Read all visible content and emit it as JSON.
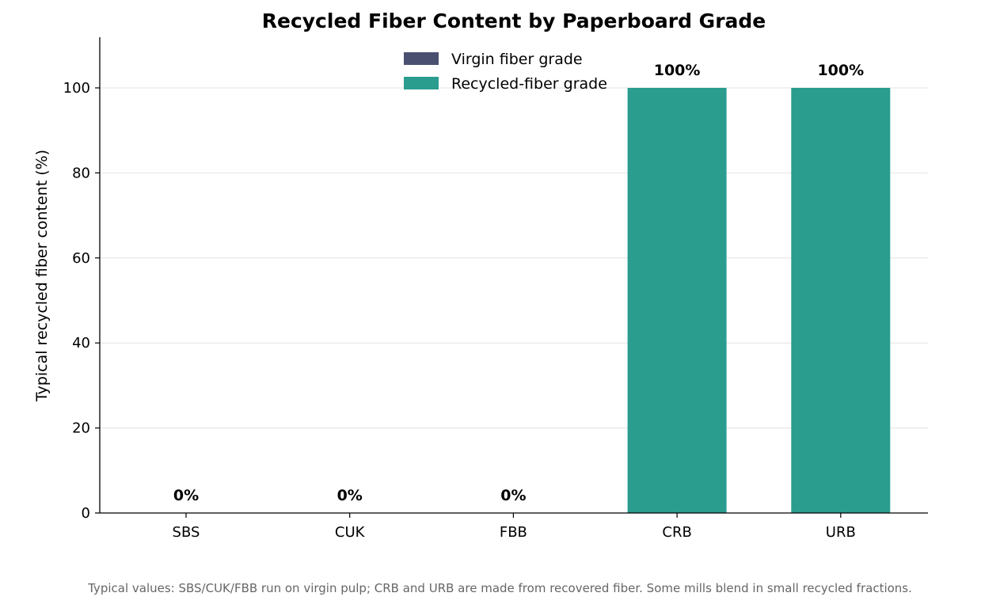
{
  "chart_data": {
    "type": "bar",
    "title": "Recycled Fiber Content by Paperboard Grade",
    "xlabel": "",
    "ylabel": "Typical recycled fiber content (%)",
    "categories": [
      "SBS",
      "CUK",
      "FBB",
      "CRB",
      "URB"
    ],
    "values": [
      0,
      0,
      0,
      100,
      100
    ],
    "data_labels": [
      "0%",
      "0%",
      "0%",
      "100%",
      "100%"
    ],
    "bar_group": [
      "virgin",
      "virgin",
      "virgin",
      "recycled",
      "recycled"
    ],
    "ylim": [
      0,
      112
    ],
    "yticks": [
      0,
      20,
      40,
      60,
      80,
      100
    ],
    "grid": "y-only",
    "legend": {
      "placement": "top-center",
      "entries": [
        {
          "key": "virgin",
          "label": "Virgin fiber grade",
          "color": "#4a5070"
        },
        {
          "key": "recycled",
          "label": "Recycled-fiber grade",
          "color": "#2a9d8f"
        }
      ]
    }
  },
  "footnote": "Typical values: SBS/CUK/FBB run on virgin pulp; CRB and URB are made from recovered fiber. Some mills blend in small recycled fractions."
}
